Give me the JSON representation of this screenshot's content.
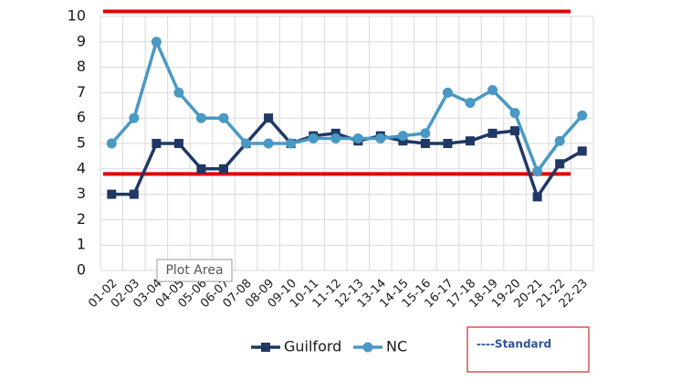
{
  "chart_data": {
    "type": "line",
    "categories": [
      "01-02",
      "02-03",
      "03-04",
      "04-05",
      "05-06",
      "06-07",
      "07-08",
      "08-09",
      "09-10",
      "10-11",
      "11-12",
      "12-13",
      "13-14",
      "14-15",
      "15-16",
      "16-17",
      "17-18",
      "18-19",
      "19-20",
      "20-21",
      "21-22",
      "22-23"
    ],
    "series": [
      {
        "name": "Guilford",
        "color": "#1f3864",
        "marker": "square",
        "values": [
          3,
          3,
          5,
          5,
          4,
          4,
          5,
          6,
          5,
          5.3,
          5.4,
          5.1,
          5.3,
          5.1,
          5.0,
          5.0,
          5.1,
          5.4,
          5.5,
          2.9,
          4.2,
          4.7
        ]
      },
      {
        "name": "NC",
        "color": "#4a98c4",
        "marker": "circle",
        "values": [
          5,
          6,
          9,
          7,
          6,
          6,
          5,
          5,
          5,
          5.2,
          5.2,
          5.2,
          5.2,
          5.3,
          5.4,
          7,
          6.6,
          7.1,
          6.2,
          3.9,
          5.1,
          6.1
        ]
      }
    ],
    "reference_lines": [
      {
        "value": 10.2,
        "color": "#e00000"
      },
      {
        "value": 3.8,
        "color": "#e00000"
      }
    ],
    "reference_label": "----Standard",
    "tooltip": "Plot Area",
    "ylim": [
      0,
      10
    ],
    "yticks": [
      0,
      1,
      2,
      3,
      4,
      5,
      6,
      7,
      8,
      9,
      10
    ],
    "grid": true
  }
}
